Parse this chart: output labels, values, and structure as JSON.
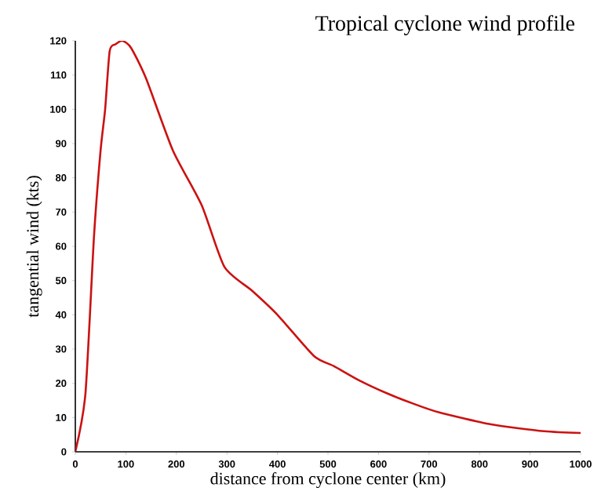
{
  "chart_data": {
    "type": "line",
    "title": "Tropical cyclone wind profile",
    "xlabel": "distance from cyclone center (km)",
    "ylabel": "tangential wind (kts)",
    "x": [
      0,
      20,
      37,
      50,
      59,
      68,
      80,
      93,
      110,
      140,
      193,
      250,
      295,
      350,
      400,
      472,
      512,
      560,
      618,
      670,
      720,
      823,
      928,
      1000
    ],
    "series": [
      {
        "color": "#cc1111",
        "values": [
          0,
          17,
          63,
          88,
          100,
          117,
          119,
          120,
          118,
          109,
          88,
          72,
          54,
          47,
          40,
          28,
          25,
          21,
          17,
          14,
          11.5,
          8,
          6,
          5.5
        ]
      }
    ],
    "xlim": [
      0,
      1000
    ],
    "ylim": [
      0,
      120
    ],
    "xticks": [
      0,
      100,
      200,
      300,
      400,
      500,
      600,
      700,
      800,
      900,
      1000
    ],
    "yticks": [
      0,
      10,
      20,
      30,
      40,
      50,
      60,
      70,
      80,
      90,
      100,
      110,
      120
    ],
    "grid": false,
    "marker": "none",
    "line_style": "solid"
  }
}
